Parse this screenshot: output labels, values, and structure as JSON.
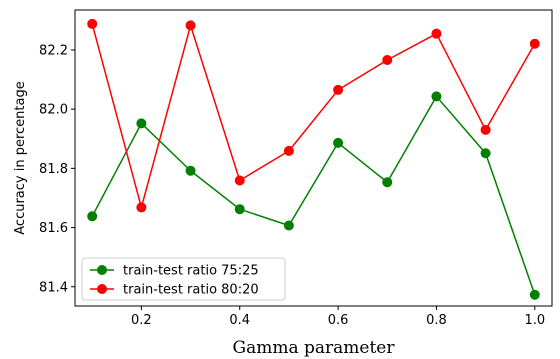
{
  "chart_data": {
    "type": "line",
    "title": "",
    "xlabel": "Gamma parameter",
    "ylabel": "Accuracy in percentage",
    "x": [
      0.1,
      0.2,
      0.3,
      0.4,
      0.5,
      0.6,
      0.7,
      0.8,
      0.9,
      1.0
    ],
    "xticks": [
      "0.2",
      "0.4",
      "0.6",
      "0.8",
      "1.0"
    ],
    "yticks": [
      "81.4",
      "81.6",
      "81.8",
      "82.0",
      "82.2"
    ],
    "xlim": [
      0.065,
      1.035
    ],
    "ylim": [
      81.335,
      82.335
    ],
    "grid": false,
    "legend_position": "lower-left",
    "series": [
      {
        "name": "train-test ratio 75:25",
        "color": "#008000",
        "marker": "circle",
        "values": [
          81.638,
          81.952,
          81.792,
          81.662,
          81.607,
          81.886,
          81.753,
          82.043,
          81.851,
          81.373
        ]
      },
      {
        "name": "train-test ratio 80:20",
        "color": "#ff0000",
        "marker": "circle",
        "values": [
          82.288,
          81.668,
          82.283,
          81.759,
          81.859,
          82.065,
          82.166,
          82.255,
          81.93,
          82.221
        ]
      }
    ]
  }
}
